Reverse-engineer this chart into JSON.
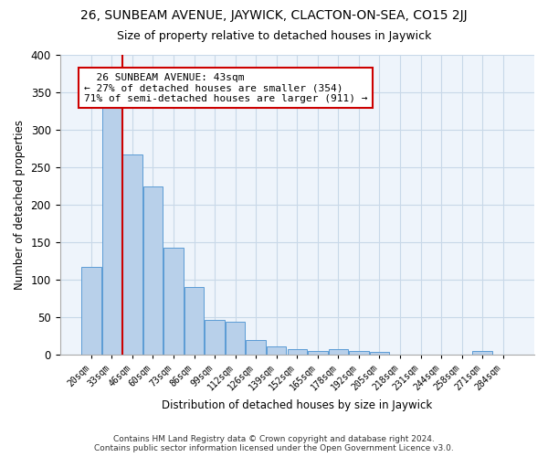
{
  "title": "26, SUNBEAM AVENUE, JAYWICK, CLACTON-ON-SEA, CO15 2JJ",
  "subtitle": "Size of property relative to detached houses in Jaywick",
  "xlabel": "Distribution of detached houses by size in Jaywick",
  "ylabel": "Number of detached properties",
  "footer_line1": "Contains HM Land Registry data © Crown copyright and database right 2024.",
  "footer_line2": "Contains public sector information licensed under the Open Government Licence v3.0.",
  "categories": [
    "20sqm",
    "33sqm",
    "46sqm",
    "60sqm",
    "73sqm",
    "86sqm",
    "99sqm",
    "112sqm",
    "126sqm",
    "139sqm",
    "152sqm",
    "165sqm",
    "178sqm",
    "192sqm",
    "205sqm",
    "218sqm",
    "231sqm",
    "244sqm",
    "258sqm",
    "271sqm",
    "284sqm"
  ],
  "values": [
    117,
    330,
    267,
    224,
    142,
    90,
    46,
    43,
    19,
    10,
    7,
    5,
    7,
    4,
    3,
    0,
    0,
    0,
    0,
    5,
    0
  ],
  "bar_color": "#b8d0ea",
  "bar_edge_color": "#5b9bd5",
  "property_label": "26 SUNBEAM AVENUE: 43sqm",
  "pct_smaller": 27,
  "n_smaller": 354,
  "pct_larger_semi": 71,
  "n_larger_semi": 911,
  "redline_color": "#cc0000",
  "annotation_box_color": "#cc0000",
  "ylim": [
    0,
    400
  ],
  "yticks": [
    0,
    50,
    100,
    150,
    200,
    250,
    300,
    350,
    400
  ],
  "grid_color": "#c8d8e8",
  "background_color": "#eef4fb",
  "title_fontsize": 10,
  "subtitle_fontsize": 9
}
